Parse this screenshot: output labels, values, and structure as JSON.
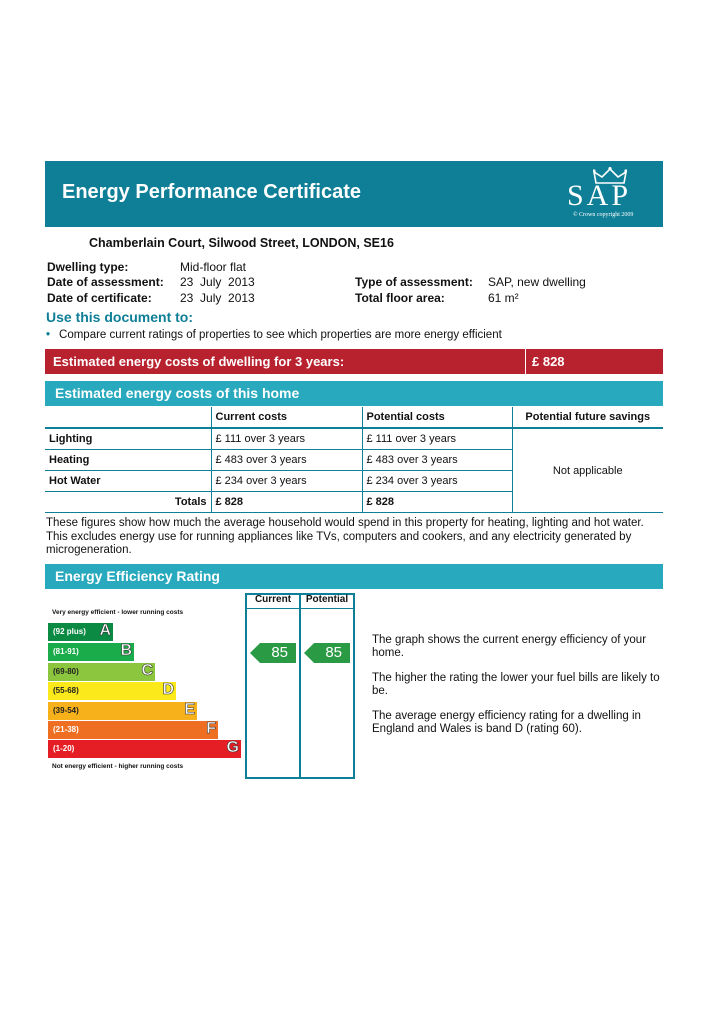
{
  "header": {
    "title": "Energy Performance Certificate",
    "logo_text": "SAP",
    "logo_copyright": "© Crown copyright 2009",
    "color": "#0f7f97"
  },
  "address": "Chamberlain Court, Silwood Street, LONDON, SE16",
  "details": {
    "dwelling_type_label": "Dwelling type:",
    "dwelling_type": "Mid-floor flat",
    "assessment_date_label": "Date of assessment:",
    "assessment_date": "23  July  2013",
    "certificate_date_label": "Date of certificate:",
    "certificate_date": "23  July  2013",
    "assessment_type_label": "Type of assessment:",
    "assessment_type": "SAP, new dwelling",
    "floor_area_label": "Total floor area:",
    "floor_area": "61 m²"
  },
  "use_document": {
    "title": "Use this document to:",
    "bullets": [
      "Compare current ratings of properties to see which properties are more energy efficient"
    ]
  },
  "estimated_3yr": {
    "label": "Estimated energy costs of dwelling for 3 years:",
    "value": "£ 828",
    "color": "#b8212e"
  },
  "costs_section": {
    "title": "Estimated energy costs of this home",
    "headers": [
      "",
      "Current costs",
      "Potential costs",
      "Potential future savings"
    ],
    "rows": [
      {
        "name": "Lighting",
        "current": "£ 111 over 3 years",
        "potential": "£ 111 over 3 years"
      },
      {
        "name": "Heating",
        "current": "£ 483 over 3 years",
        "potential": "£ 483 over 3 years"
      },
      {
        "name": "Hot Water",
        "current": "£ 234 over 3 years",
        "potential": "£ 234 over 3 years"
      }
    ],
    "totals_label": "Totals",
    "totals_current": "£ 828",
    "totals_potential": "£ 828",
    "savings": "Not applicable"
  },
  "explanation": "These figures show how much the average household would spend in this property for heating, lighting and hot water. This excludes energy use for running appliances like TVs, computers and cookers, and any electricity generated by microgeneration.",
  "efficiency": {
    "title": "Energy Efficiency Rating",
    "top_label": "Very energy efficient - lower running costs",
    "bottom_label": "Not energy efficient - higher running costs",
    "col_current": "Current",
    "col_potential": "Potential",
    "current": "85",
    "potential": "85",
    "bands": [
      {
        "range": "(92 plus)",
        "letter": "A",
        "color": "#0b8a44"
      },
      {
        "range": "(81-91)",
        "letter": "B",
        "color": "#1aab4b"
      },
      {
        "range": "(69-80)",
        "letter": "C",
        "color": "#8cc63f"
      },
      {
        "range": "(55-68)",
        "letter": "D",
        "color": "#fbe91b"
      },
      {
        "range": "(39-54)",
        "letter": "E",
        "color": "#f7b11a"
      },
      {
        "range": "(21-38)",
        "letter": "F",
        "color": "#ef6f22"
      },
      {
        "range": "(1-20)",
        "letter": "G",
        "color": "#e51e25"
      }
    ],
    "text": [
      "The graph shows the current energy efficiency of your home.",
      "The higher the rating the lower your fuel bills are likely to be.",
      "The average energy efficiency rating for a dwelling in England and Wales is band D (rating 60)."
    ]
  }
}
